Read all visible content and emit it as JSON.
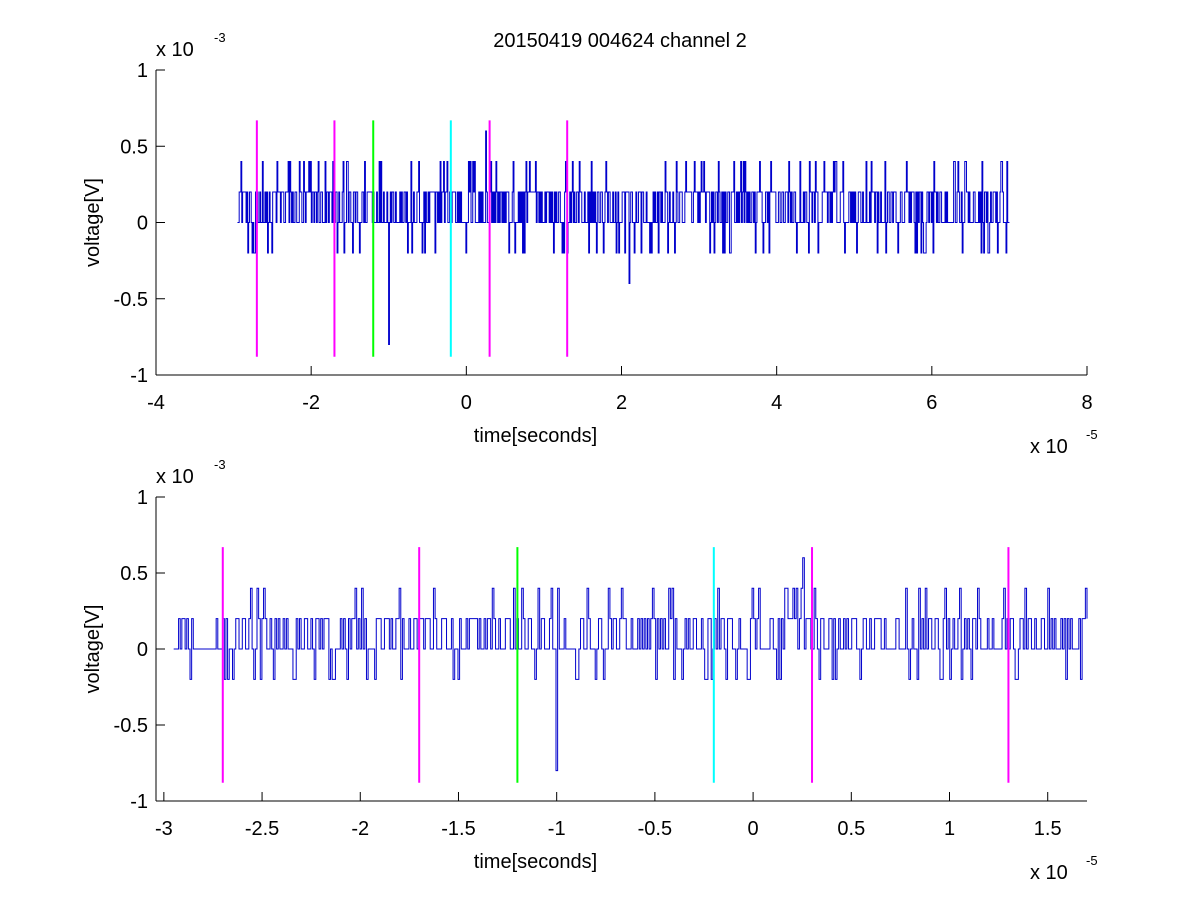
{
  "figure": {
    "title": "20150419 004624 channel 2"
  },
  "chart_data": [
    {
      "type": "line",
      "xlabel": "time[seconds]",
      "ylabel": "voltage[V]",
      "x_multiplier": "x 10",
      "x_exponent": "-5",
      "y_multiplier": "x 10",
      "y_exponent": "-3",
      "xlim": [
        -4,
        8
      ],
      "ylim": [
        -1,
        1
      ],
      "xticks": [
        -4,
        -2,
        0,
        2,
        4,
        6,
        8
      ],
      "xtick_labels": [
        "-4",
        "-2",
        "0",
        "2",
        "4",
        "6",
        "8"
      ],
      "yticks": [
        -1,
        -0.5,
        0,
        0.5,
        1
      ],
      "ytick_labels": [
        "-1",
        "-0.5",
        "0",
        "0.5",
        "1"
      ],
      "grid": false,
      "signal_color": "#0000cc",
      "signal": {
        "x_range": [
          -2.95,
          7.0
        ],
        "levels": [
          -0.2,
          0,
          0.2,
          0.4
        ],
        "extremes": [
          {
            "x": -1.0,
            "y": -0.8
          },
          {
            "x": 0.25,
            "y": 0.6
          },
          {
            "x": 2.1,
            "y": -0.4
          }
        ]
      },
      "markers": [
        {
          "x": -2.7,
          "y0": -0.88,
          "y1": 0.67,
          "color": "#ff00ff"
        },
        {
          "x": -1.7,
          "y0": -0.88,
          "y1": 0.67,
          "color": "#ff00ff"
        },
        {
          "x": -1.2,
          "y0": -0.88,
          "y1": 0.67,
          "color": "#00ff00"
        },
        {
          "x": -0.2,
          "y0": -0.88,
          "y1": 0.67,
          "color": "#00ffff"
        },
        {
          "x": 0.3,
          "y0": -0.88,
          "y1": 0.67,
          "color": "#ff00ff"
        },
        {
          "x": 1.3,
          "y0": -0.88,
          "y1": 0.67,
          "color": "#ff00ff"
        }
      ]
    },
    {
      "type": "line",
      "xlabel": "time[seconds]",
      "ylabel": "voltage[V]",
      "x_multiplier": "x 10",
      "x_exponent": "-5",
      "y_multiplier": "x 10",
      "y_exponent": "-3",
      "xlim": [
        -3.04,
        1.7
      ],
      "ylim": [
        -1,
        1
      ],
      "xticks": [
        -3,
        -2.5,
        -2,
        -1.5,
        -1,
        -0.5,
        0,
        0.5,
        1,
        1.5
      ],
      "xtick_labels": [
        "-3",
        "-2.5",
        "-2",
        "-1.5",
        "-1",
        "-0.5",
        "0",
        "0.5",
        "1",
        "1.5"
      ],
      "yticks": [
        -1,
        -0.5,
        0,
        0.5,
        1
      ],
      "ytick_labels": [
        "-1",
        "-0.5",
        "0",
        "0.5",
        "1"
      ],
      "grid": false,
      "signal_color": "#0000cc",
      "signal": {
        "x_range": [
          -2.95,
          1.7
        ],
        "levels": [
          -0.2,
          0,
          0.2,
          0.4
        ],
        "extremes": [
          {
            "x": -1.0,
            "y": -0.8
          },
          {
            "x": 0.25,
            "y": 0.6
          }
        ]
      },
      "markers": [
        {
          "x": -2.7,
          "y0": -0.88,
          "y1": 0.67,
          "color": "#ff00ff"
        },
        {
          "x": -1.7,
          "y0": -0.88,
          "y1": 0.67,
          "color": "#ff00ff"
        },
        {
          "x": -1.2,
          "y0": -0.88,
          "y1": 0.67,
          "color": "#00ff00"
        },
        {
          "x": -0.2,
          "y0": -0.88,
          "y1": 0.67,
          "color": "#00ffff"
        },
        {
          "x": 0.3,
          "y0": -0.88,
          "y1": 0.67,
          "color": "#ff00ff"
        },
        {
          "x": 1.3,
          "y0": -0.88,
          "y1": 0.67,
          "color": "#ff00ff"
        }
      ]
    }
  ]
}
